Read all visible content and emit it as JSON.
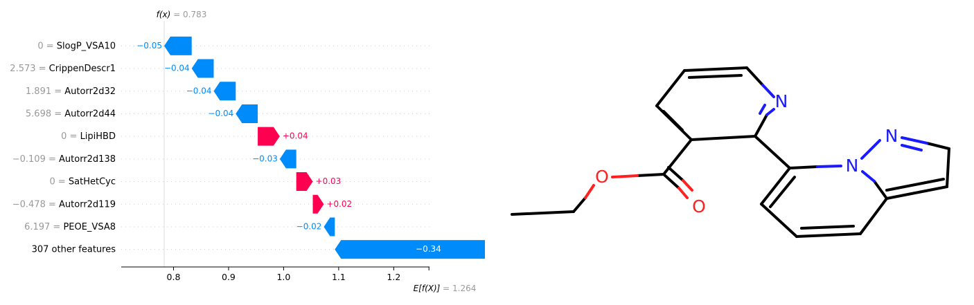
{
  "chart_data": {
    "type": "waterfall",
    "fx_label": "f(x)",
    "fx_value": "0.783",
    "fx": 0.783,
    "ex_label": "E[f(X)]",
    "ex_value": "1.264",
    "ex": 1.264,
    "xlim": [
      0.705,
      1.265
    ],
    "xticks": [
      "0.8",
      "0.9",
      "1.0",
      "1.1",
      "1.2"
    ],
    "colors": {
      "positive": "#ff0051",
      "negative": "#008bfb",
      "label_value": "#999999"
    },
    "features": [
      {
        "value": "0",
        "name": "SlogP_VSA10",
        "contribution": -0.05,
        "label": "−0.05"
      },
      {
        "value": "2.573",
        "name": "CrippenDescr1",
        "contribution": -0.04,
        "label": "−0.04"
      },
      {
        "value": "1.891",
        "name": "Autorr2d32",
        "contribution": -0.04,
        "label": "−0.04"
      },
      {
        "value": "5.698",
        "name": "Autorr2d44",
        "contribution": -0.04,
        "label": "−0.04"
      },
      {
        "value": "0",
        "name": "LipiHBD",
        "contribution": 0.04,
        "label": "+0.04"
      },
      {
        "value": "−0.109",
        "name": "Autorr2d138",
        "contribution": -0.03,
        "label": "−0.03"
      },
      {
        "value": "0",
        "name": "SatHetCyc",
        "contribution": 0.03,
        "label": "+0.03"
      },
      {
        "value": "−0.478",
        "name": "Autorr2d119",
        "contribution": 0.02,
        "label": "+0.02"
      },
      {
        "value": "6.197",
        "name": "PEOE_VSA8",
        "contribution": -0.02,
        "label": "−0.02"
      },
      {
        "value": "",
        "name": "307 other features",
        "contribution": -0.34,
        "label": "−0.34"
      }
    ]
  },
  "molecule": {
    "atoms": [
      "N",
      "N",
      "N",
      "O",
      "O"
    ]
  }
}
